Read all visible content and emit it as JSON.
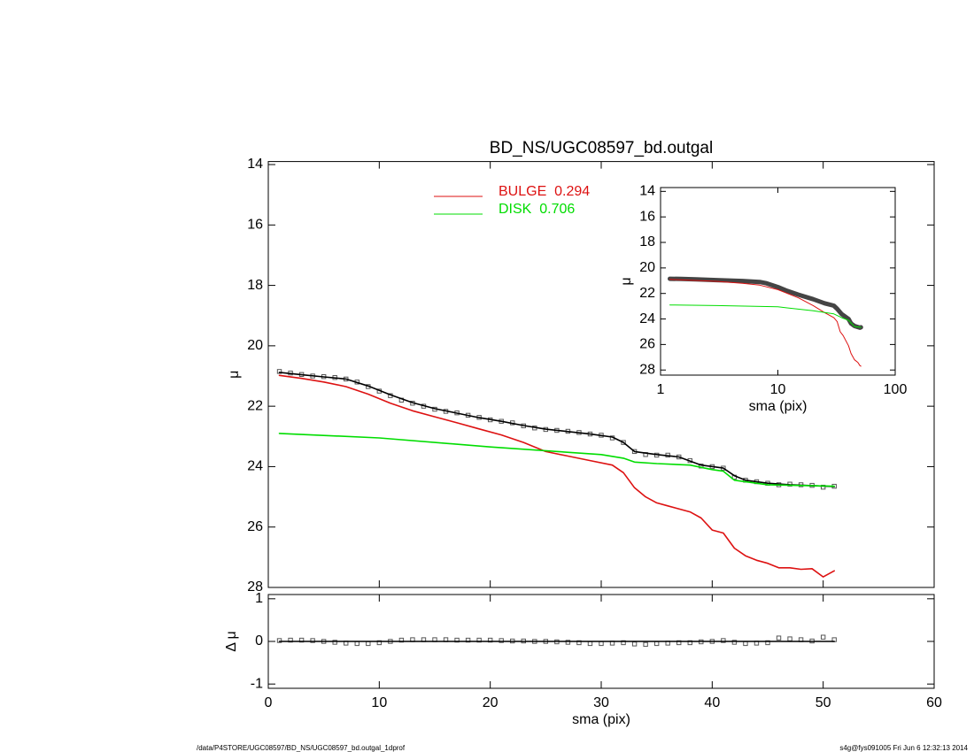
{
  "chart_data": [
    {
      "type": "line",
      "title": "BD_NS/UGC08597_bd.outgal",
      "ylabel": "μ",
      "xlim": [
        0,
        60
      ],
      "xticks": [
        0,
        10,
        20,
        30,
        40,
        50,
        60
      ],
      "show_xtick_labels": false,
      "ylim": [
        28,
        13.9
      ],
      "yticks": [
        14,
        16,
        18,
        20,
        22,
        24,
        26,
        28
      ],
      "series": [
        {
          "color": "#555555",
          "marker": "square",
          "x": [
            1,
            2,
            3,
            4,
            5,
            6,
            7,
            8,
            9,
            10,
            11,
            12,
            13,
            14,
            15,
            16,
            17,
            18,
            19,
            20,
            21,
            22,
            23,
            24,
            25,
            26,
            27,
            28,
            29,
            30,
            31,
            32,
            33,
            34,
            35,
            36,
            37,
            38,
            39,
            40,
            41,
            42,
            43,
            44,
            45,
            46,
            47,
            48,
            49,
            50,
            51
          ],
          "values": [
            20.85,
            20.9,
            20.95,
            21.0,
            21.02,
            21.05,
            21.1,
            21.2,
            21.35,
            21.5,
            21.65,
            21.8,
            21.9,
            22.0,
            22.1,
            22.17,
            22.22,
            22.3,
            22.37,
            22.45,
            22.5,
            22.55,
            22.65,
            22.72,
            22.77,
            22.8,
            22.83,
            22.87,
            22.92,
            22.96,
            23.05,
            23.2,
            23.5,
            23.6,
            23.62,
            23.62,
            23.68,
            23.8,
            23.98,
            24.0,
            24.05,
            24.35,
            24.45,
            24.5,
            24.55,
            24.6,
            24.58,
            24.6,
            24.62,
            24.68,
            24.65
          ]
        },
        {
          "color": "#000000",
          "x": [
            1,
            3,
            5,
            7,
            9,
            11,
            13,
            15,
            17,
            19,
            21,
            23,
            25,
            27,
            29,
            31,
            32,
            33,
            35,
            37,
            39,
            41,
            42,
            43,
            45,
            47,
            49,
            51
          ],
          "values": [
            20.88,
            20.96,
            21.03,
            21.1,
            21.33,
            21.62,
            21.88,
            22.08,
            22.23,
            22.38,
            22.5,
            22.64,
            22.76,
            22.84,
            22.92,
            23.02,
            23.2,
            23.5,
            23.6,
            23.68,
            23.95,
            24.05,
            24.3,
            24.45,
            24.55,
            24.6,
            24.63,
            24.66
          ]
        },
        {
          "name": "BULGE  0.294",
          "color": "#dd1111",
          "x": [
            1,
            3,
            5,
            7,
            9,
            11,
            13,
            15,
            17,
            19,
            21,
            23,
            25,
            27,
            29,
            31,
            32,
            33,
            34,
            35,
            36,
            38,
            39,
            40,
            41,
            42,
            43,
            44,
            45,
            46,
            47,
            48,
            49,
            50,
            51
          ],
          "values": [
            20.98,
            21.08,
            21.2,
            21.35,
            21.6,
            21.9,
            22.15,
            22.35,
            22.55,
            22.75,
            22.95,
            23.2,
            23.5,
            23.65,
            23.8,
            23.95,
            24.2,
            24.7,
            25.0,
            25.2,
            25.3,
            25.5,
            25.7,
            26.1,
            26.2,
            26.7,
            26.95,
            27.1,
            27.2,
            27.35,
            27.35,
            27.4,
            27.38,
            27.65,
            27.45
          ]
        },
        {
          "name": "DISK  0.706",
          "color": "#00dd00",
          "x": [
            1,
            10,
            20,
            30,
            32,
            33,
            35,
            38,
            40,
            41,
            42,
            45,
            51
          ],
          "values": [
            22.9,
            23.05,
            23.35,
            23.6,
            23.72,
            23.85,
            23.9,
            23.95,
            24.1,
            24.15,
            24.45,
            24.6,
            24.65
          ]
        }
      ]
    },
    {
      "type": "line",
      "xlabel": "sma (pix)",
      "ylabel": "Δ μ",
      "xlim": [
        0,
        60
      ],
      "xticks": [
        0,
        10,
        20,
        30,
        40,
        50,
        60
      ],
      "ylim": [
        -1.1,
        1.1
      ],
      "yticks": [
        -1,
        0,
        1
      ],
      "series": [
        {
          "color": "#555555",
          "marker": "square",
          "x": [
            1,
            2,
            3,
            4,
            5,
            6,
            7,
            8,
            9,
            10,
            11,
            12,
            13,
            14,
            15,
            16,
            17,
            18,
            19,
            20,
            21,
            22,
            23,
            24,
            25,
            26,
            27,
            28,
            29,
            30,
            31,
            32,
            33,
            34,
            35,
            36,
            37,
            38,
            39,
            40,
            41,
            42,
            43,
            44,
            45,
            46,
            47,
            48,
            49,
            50,
            51
          ],
          "values": [
            0.02,
            0.03,
            0.03,
            0.02,
            0.0,
            -0.02,
            -0.04,
            -0.05,
            -0.05,
            -0.03,
            0.0,
            0.03,
            0.04,
            0.04,
            0.04,
            0.04,
            0.03,
            0.03,
            0.03,
            0.03,
            0.02,
            0.01,
            0.01,
            0.0,
            0.0,
            -0.01,
            -0.02,
            -0.03,
            -0.05,
            -0.05,
            -0.04,
            -0.03,
            -0.06,
            -0.07,
            -0.05,
            -0.04,
            -0.03,
            -0.03,
            -0.01,
            0.0,
            0.02,
            -0.02,
            -0.05,
            -0.04,
            -0.03,
            0.08,
            0.06,
            0.04,
            0.01,
            0.1,
            0.04
          ]
        },
        {
          "color": "#000000",
          "x": [
            1,
            51
          ],
          "values": [
            0,
            0
          ]
        }
      ]
    },
    {
      "type": "line",
      "xlabel": "sma (pix)",
      "ylabel": "μ",
      "xlog": true,
      "xlim": [
        1,
        100
      ],
      "xticks": [
        1,
        10,
        100
      ],
      "ylim": [
        28.4,
        13.7
      ],
      "yticks": [
        14,
        16,
        18,
        20,
        22,
        24,
        26,
        28
      ],
      "series": [
        {
          "color": "#444444",
          "marker": "thick",
          "x": [
            1.2,
            1.5,
            2,
            3,
            5,
            7,
            8,
            10,
            12,
            15,
            20,
            25,
            30,
            32,
            35,
            40,
            42,
            45,
            50,
            51
          ],
          "values": [
            20.85,
            20.86,
            20.9,
            20.95,
            21.02,
            21.1,
            21.2,
            21.5,
            21.8,
            22.1,
            22.45,
            22.77,
            22.96,
            23.2,
            23.62,
            24.0,
            24.35,
            24.55,
            24.68,
            24.65
          ]
        },
        {
          "color": "#dd1111",
          "thin": true,
          "x": [
            1.2,
            2,
            3,
            5,
            7,
            10,
            15,
            20,
            25,
            30,
            32,
            34,
            36,
            40,
            42,
            45,
            48,
            50,
            51
          ],
          "values": [
            20.9,
            20.98,
            21.05,
            21.2,
            21.35,
            21.7,
            22.35,
            22.95,
            23.5,
            23.9,
            24.2,
            25.0,
            25.3,
            26.1,
            26.7,
            27.2,
            27.4,
            27.65,
            27.7
          ]
        },
        {
          "color": "#00dd00",
          "thin": true,
          "x": [
            1.2,
            3,
            10,
            20,
            30,
            35,
            40,
            45,
            51
          ],
          "values": [
            22.9,
            22.95,
            23.05,
            23.35,
            23.6,
            23.9,
            24.1,
            24.6,
            24.65
          ]
        }
      ]
    }
  ],
  "footer": {
    "left": "/data/P4STORE/UGC08597/BD_NS/UGC08597_bd.outgal_1dprof",
    "right": "s4g@fys091005  Fri Jun  6 12:32:13 2014"
  }
}
